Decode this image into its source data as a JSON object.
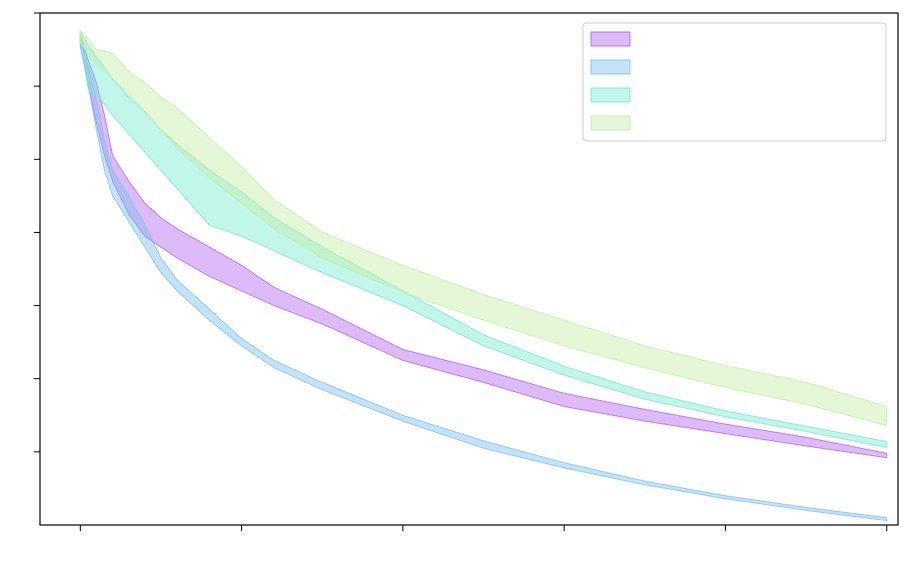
{
  "chart_data": {
    "type": "area",
    "title": "",
    "xlabel": "",
    "ylabel": "",
    "xlim": [
      -0.25,
      5.07
    ],
    "ylim": [
      0,
      7
    ],
    "x_ticks": [
      0,
      1,
      2,
      3,
      4,
      5
    ],
    "y_ticks": [
      1,
      2,
      3,
      4,
      5,
      6,
      7
    ],
    "tick_labels_visible": false,
    "grid": false,
    "legend_position": "top-right",
    "legend_entries": 4,
    "series": [
      {
        "color": "#b467f0",
        "x": [
          0,
          0.05,
          0.1,
          0.15,
          0.2,
          0.3,
          0.4,
          0.5,
          0.6,
          0.8,
          1.0,
          1.2,
          1.5,
          2.0,
          2.5,
          3.0,
          3.5,
          4.0,
          4.5,
          5.0
        ],
        "lower": [
          6.55,
          6.0,
          5.5,
          5.05,
          4.7,
          4.25,
          3.95,
          3.8,
          3.65,
          3.4,
          3.2,
          3.0,
          2.75,
          2.25,
          1.95,
          1.62,
          1.42,
          1.25,
          1.08,
          0.92
        ],
        "upper": [
          6.7,
          6.35,
          6.05,
          5.6,
          5.05,
          4.7,
          4.4,
          4.2,
          4.05,
          3.8,
          3.55,
          3.25,
          2.95,
          2.4,
          2.12,
          1.8,
          1.58,
          1.38,
          1.2,
          0.98
        ]
      },
      {
        "color": "#7ec2ef",
        "x": [
          0,
          0.05,
          0.1,
          0.15,
          0.2,
          0.3,
          0.4,
          0.5,
          0.6,
          0.8,
          1.0,
          1.2,
          1.5,
          2.0,
          2.5,
          3.0,
          3.5,
          4.0,
          4.5,
          5.0
        ],
        "lower": [
          6.55,
          6.0,
          5.4,
          4.85,
          4.5,
          4.15,
          3.8,
          3.45,
          3.2,
          2.8,
          2.45,
          2.15,
          1.85,
          1.42,
          1.05,
          0.78,
          0.55,
          0.36,
          0.2,
          0.06
        ],
        "upper": [
          6.7,
          6.25,
          5.8,
          5.25,
          4.85,
          4.5,
          4.1,
          3.65,
          3.35,
          2.95,
          2.55,
          2.25,
          1.95,
          1.5,
          1.15,
          0.85,
          0.6,
          0.4,
          0.24,
          0.1
        ]
      },
      {
        "color": "#76ebd0",
        "x": [
          0,
          0.05,
          0.1,
          0.2,
          0.3,
          0.4,
          0.5,
          0.6,
          0.8,
          1.0,
          1.2,
          1.5,
          2.0,
          2.5,
          3.0,
          3.5,
          4.0,
          4.5,
          5.0
        ],
        "lower": [
          6.6,
          5.95,
          5.9,
          5.6,
          5.35,
          5.1,
          4.85,
          4.6,
          4.1,
          3.95,
          3.75,
          3.45,
          3.0,
          2.45,
          2.05,
          1.72,
          1.48,
          1.28,
          1.06
        ],
        "upper": [
          6.75,
          6.55,
          6.4,
          6.1,
          5.85,
          5.65,
          5.4,
          5.2,
          4.85,
          4.55,
          4.2,
          3.8,
          3.2,
          2.6,
          2.17,
          1.82,
          1.56,
          1.35,
          1.14
        ]
      },
      {
        "color": "#c4f0a8",
        "x": [
          0,
          0.05,
          0.1,
          0.2,
          0.3,
          0.4,
          0.5,
          0.6,
          0.8,
          1.0,
          1.2,
          1.5,
          2.0,
          2.5,
          3.0,
          3.5,
          4.0,
          4.5,
          5.0
        ],
        "lower": [
          6.6,
          6.45,
          6.3,
          6.1,
          5.9,
          5.65,
          5.4,
          5.15,
          4.75,
          4.4,
          4.05,
          3.65,
          3.18,
          2.8,
          2.45,
          2.15,
          1.88,
          1.65,
          1.36
        ],
        "upper": [
          6.75,
          6.65,
          6.5,
          6.45,
          6.2,
          6.05,
          5.85,
          5.7,
          5.3,
          4.9,
          4.45,
          4.0,
          3.55,
          3.15,
          2.8,
          2.45,
          2.18,
          1.95,
          1.62
        ]
      }
    ]
  }
}
